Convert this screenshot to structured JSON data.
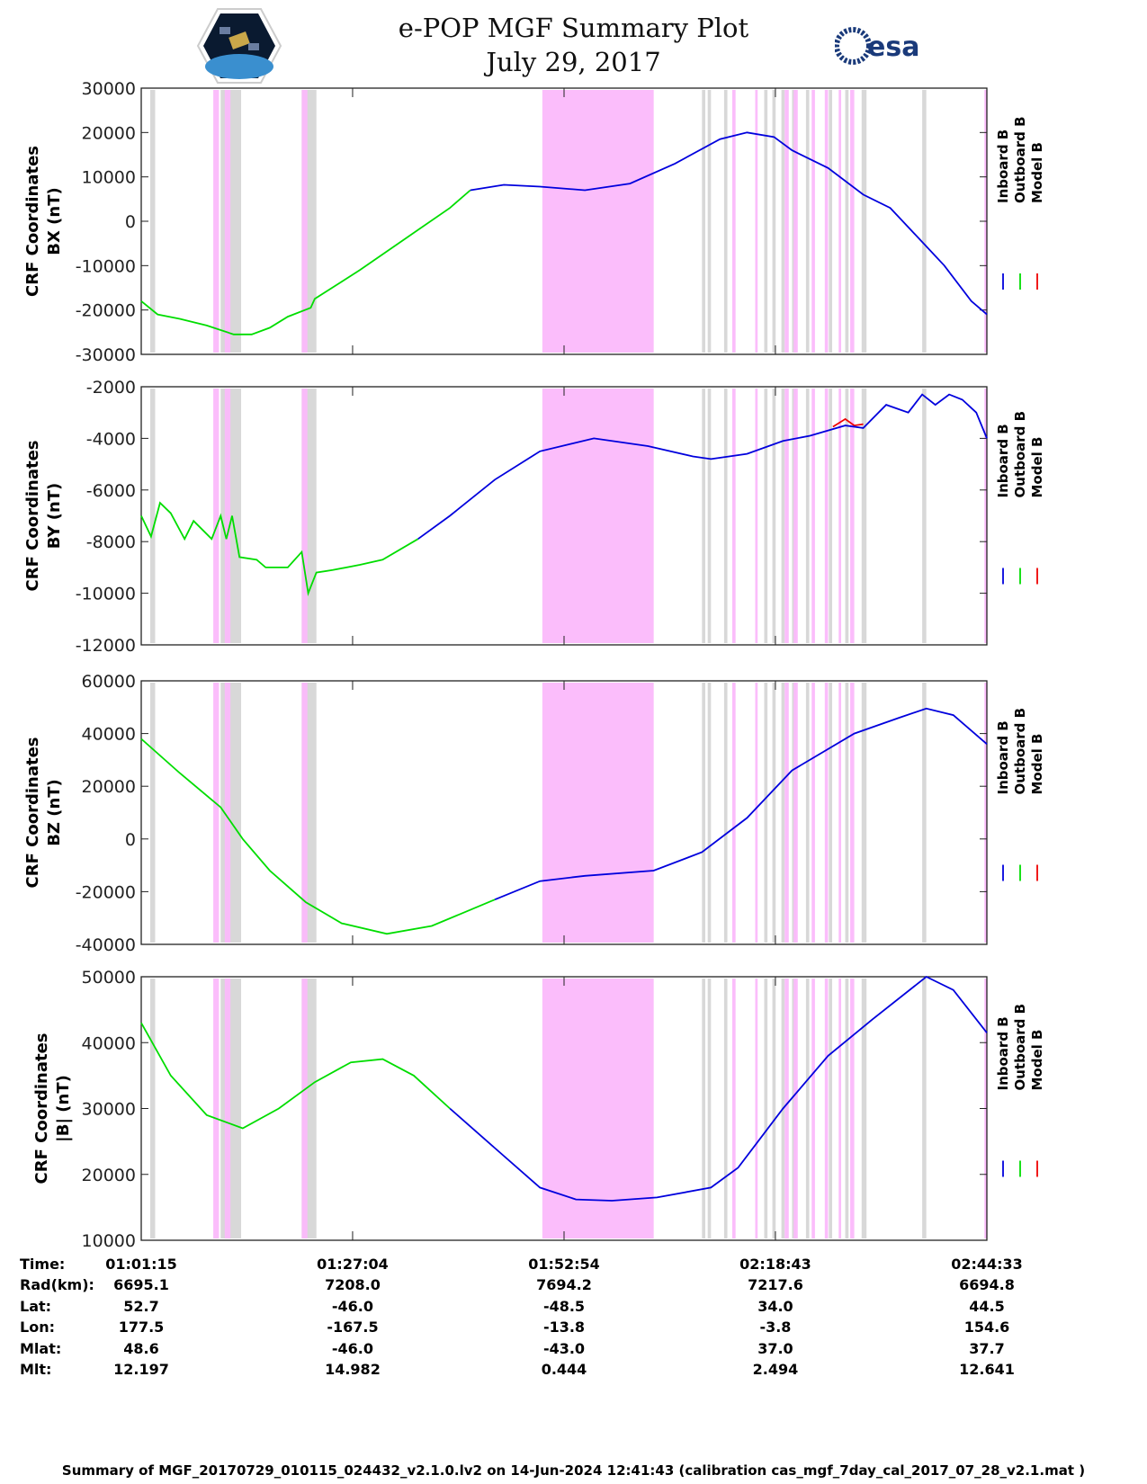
{
  "header": {
    "title": "e-POP MGF Summary Plot",
    "date": "July 29, 2017",
    "logo_left": "CASSIOPE",
    "logo_right": "esa"
  },
  "colors": {
    "inboard": "#0000dd",
    "outboard": "#00dd00",
    "model": "#ee0000",
    "pink": "#fbb9fb",
    "gray": "#d8d8d8"
  },
  "chart_data": [
    {
      "type": "line",
      "ylabel": [
        "CRF Coordinates",
        "BX (nT)"
      ],
      "ylim": [
        -30000,
        30000
      ],
      "yticks": [
        30000,
        20000,
        10000,
        0,
        -10000,
        -20000,
        -30000
      ],
      "legend": [
        "Inboard B",
        "Outboard B",
        "Model B"
      ],
      "series": [
        {
          "name": "Outboard B",
          "x": [
            0,
            2.0,
            4.7,
            8.0,
            11.3,
            13.5,
            15.7,
            17.9,
            20.7,
            21.2,
            26.7,
            32.2,
            37.7,
            40.2
          ],
          "y": [
            -18000,
            -21000,
            -22000,
            -23500,
            -25500,
            -25500,
            -24000,
            -21500,
            -19500,
            -17500,
            -11000,
            -4000,
            3000,
            7000
          ]
        },
        {
          "name": "Inboard B",
          "x": [
            40.2,
            44.3,
            48.7,
            54.2,
            59.7,
            65.2,
            70.7,
            74.0,
            77.3,
            79.5,
            83.9,
            88.2,
            91.5,
            94.8,
            98.1,
            101.4,
            103.3
          ],
          "y": [
            7000,
            8200,
            7800,
            7000,
            8500,
            13000,
            18500,
            20000,
            19000,
            16000,
            12000,
            6000,
            3000,
            -3500,
            -10000,
            -18000,
            -21000
          ]
        }
      ]
    },
    {
      "type": "line",
      "ylabel": [
        "CRF Coordinates",
        "BY (nT)"
      ],
      "ylim": [
        -12000,
        -2000
      ],
      "yticks": [
        -2000,
        -4000,
        -6000,
        -8000,
        -10000,
        -12000
      ],
      "legend": [
        "Inboard B",
        "Outboard B",
        "Model B"
      ],
      "series": [
        {
          "name": "Model B",
          "x": [
            84.5,
            86.0,
            87.1,
            88.2
          ],
          "y": [
            -3550,
            -3250,
            -3500,
            -3450
          ]
        },
        {
          "name": "Outboard B",
          "x": [
            0,
            1.2,
            2.3,
            3.6,
            5.3,
            6.4,
            8.6,
            9.7,
            10.4,
            11.1,
            12.0,
            14.1,
            15.2,
            17.9,
            19.6,
            20.4,
            21.4,
            23.4,
            26.7,
            29.5,
            33.8
          ],
          "y": [
            -7000,
            -7800,
            -6500,
            -6900,
            -7900,
            -7200,
            -7900,
            -7000,
            -7900,
            -7000,
            -8600,
            -8700,
            -9000,
            -9000,
            -8400,
            -10000,
            -9200,
            -9100,
            -8900,
            -8700,
            -7900
          ]
        },
        {
          "name": "Inboard B",
          "x": [
            33.8,
            37.7,
            43.2,
            48.7,
            55.3,
            61.9,
            67.4,
            69.6,
            74.0,
            78.4,
            81.7,
            86.0,
            88.2,
            91.0,
            93.7,
            95.4,
            97.0,
            98.7,
            100.3,
            102.0,
            103.3
          ],
          "y": [
            -7900,
            -7000,
            -5600,
            -4500,
            -4000,
            -4300,
            -4700,
            -4800,
            -4600,
            -4100,
            -3900,
            -3500,
            -3600,
            -2700,
            -3000,
            -2300,
            -2700,
            -2300,
            -2500,
            -3000,
            -4000
          ]
        }
      ]
    },
    {
      "type": "line",
      "ylabel": [
        "CRF Coordinates",
        "BZ (nT)"
      ],
      "ylim": [
        -40000,
        60000
      ],
      "yticks": [
        60000,
        40000,
        20000,
        0,
        -20000,
        -40000
      ],
      "legend": [
        "Inboard B",
        "Outboard B",
        "Model B"
      ],
      "series": [
        {
          "name": "Outboard B",
          "x": [
            0,
            4.7,
            9.7,
            12.4,
            15.7,
            20.1,
            24.5,
            30.0,
            35.5,
            43.2
          ],
          "y": [
            38000,
            25000,
            12000,
            0,
            -12000,
            -24000,
            -32000,
            -36000,
            -33000,
            -23000
          ]
        },
        {
          "name": "Inboard B",
          "x": [
            43.2,
            48.7,
            54.2,
            62.6,
            68.5,
            74.0,
            79.5,
            87.1,
            92.6,
            95.9,
            99.2,
            103.3
          ],
          "y": [
            -23000,
            -16000,
            -14000,
            -12000,
            -5000,
            8000,
            26000,
            40000,
            46000,
            49500,
            47000,
            36000
          ]
        }
      ]
    },
    {
      "type": "line",
      "ylabel": [
        "CRF Coordinates",
        "|B| (nT)"
      ],
      "ylim": [
        10000,
        50000
      ],
      "yticks": [
        50000,
        40000,
        30000,
        20000,
        10000
      ],
      "legend": [
        "Inboard B",
        "Outboard B",
        "Model B"
      ],
      "series": [
        {
          "name": "Outboard B",
          "x": [
            0,
            3.6,
            8.0,
            12.4,
            16.8,
            21.2,
            25.6,
            29.5,
            33.3,
            37.7
          ],
          "y": [
            43000,
            35000,
            29000,
            27000,
            30000,
            34000,
            37000,
            37500,
            35000,
            30000
          ]
        },
        {
          "name": "Inboard B",
          "x": [
            37.7,
            43.2,
            48.7,
            53.1,
            57.5,
            63.0,
            69.6,
            72.9,
            78.4,
            83.9,
            89.3,
            95.9,
            99.2,
            103.3
          ],
          "y": [
            30000,
            24000,
            18000,
            16200,
            16000,
            16500,
            18000,
            21000,
            30000,
            38000,
            43500,
            50000,
            48000,
            41500
          ]
        }
      ]
    }
  ],
  "xaxis": {
    "unit": "minutes since 01:01:15",
    "xlim": [
      0,
      103.3
    ],
    "ticks": [
      0,
      25.82,
      51.65,
      77.47,
      103.3
    ]
  },
  "shading": {
    "gray": [
      [
        1.1,
        1.7
      ],
      [
        9.7,
        12.2
      ],
      [
        19.6,
        21.4
      ],
      [
        68.5,
        68.9
      ],
      [
        69.2,
        69.6
      ],
      [
        71.2,
        71.6
      ],
      [
        76.1,
        76.5
      ],
      [
        77.1,
        77.5
      ],
      [
        78.2,
        78.6
      ],
      [
        79.5,
        80.0
      ],
      [
        81.2,
        81.6
      ],
      [
        84.0,
        84.4
      ],
      [
        86.0,
        86.4
      ],
      [
        88.0,
        88.6
      ],
      [
        95.4,
        95.9
      ]
    ],
    "pink": [
      [
        8.8,
        9.5
      ],
      [
        10.2,
        10.9
      ],
      [
        19.6,
        20.3
      ],
      [
        49.0,
        62.6
      ],
      [
        72.2,
        72.6
      ],
      [
        75.0,
        75.3
      ],
      [
        78.6,
        79.1
      ],
      [
        79.7,
        80.2
      ],
      [
        81.9,
        82.3
      ],
      [
        83.5,
        83.9
      ],
      [
        85.2,
        85.5
      ],
      [
        86.6,
        87.1
      ],
      [
        103.0,
        103.3
      ]
    ]
  },
  "table": {
    "labels": [
      "Time:",
      "Rad(km):",
      "Lat:",
      "Lon:",
      "Mlat:",
      "Mlt:"
    ],
    "columns": [
      [
        "01:01:15",
        "6695.1",
        "52.7",
        "177.5",
        "48.6",
        "12.197"
      ],
      [
        "01:27:04",
        "7208.0",
        "-46.0",
        "-167.5",
        "-46.0",
        "14.982"
      ],
      [
        "01:52:54",
        "7694.2",
        "-48.5",
        "-13.8",
        "-43.0",
        "0.444"
      ],
      [
        "02:18:43",
        "7217.6",
        "34.0",
        "-3.8",
        "37.0",
        "2.494"
      ],
      [
        "02:44:33",
        "6694.8",
        "44.5",
        "154.6",
        "37.7",
        "12.641"
      ]
    ]
  },
  "footer": "Summary of MGF_20170729_010115_024432_v2.1.0.lv2 on 14-Jun-2024 12:41:43 (calibration cas_mgf_7day_cal_2017_07_28_v2.1.mat )"
}
